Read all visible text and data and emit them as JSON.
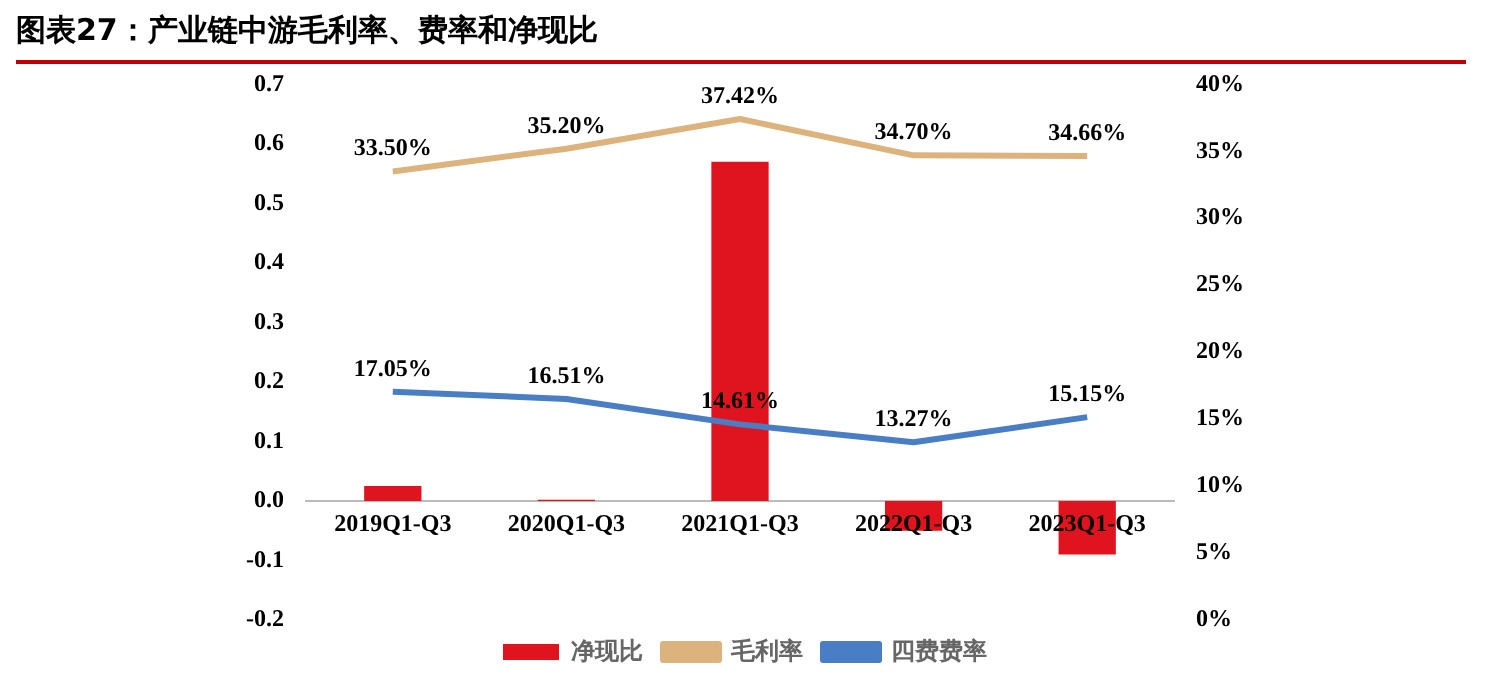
{
  "chart_data": {
    "type": "bar",
    "title": "图表27：产业链中游毛利率、费率和净现比",
    "categories": [
      "2019Q1-Q3",
      "2020Q1-Q3",
      "2021Q1-Q3",
      "2022Q1-Q3",
      "2023Q1-Q3"
    ],
    "series": [
      {
        "name": "净现比",
        "color": "#e0141e",
        "values": [
          0.025,
          0.002,
          0.57,
          -0.05,
          -0.09
        ]
      },
      {
        "name": "毛利率",
        "type": "line",
        "axis": "y2",
        "color": "#dcb37d",
        "values": [
          33.5,
          35.2,
          37.42,
          34.7,
          34.66
        ],
        "value_labels": [
          "33.50%",
          "35.20%",
          "37.42%",
          "34.70%",
          "34.66%"
        ]
      },
      {
        "name": "四费费率",
        "type": "line",
        "axis": "y2",
        "color": "#4a7ec4",
        "values": [
          17.05,
          16.51,
          14.61,
          13.27,
          15.15
        ],
        "value_labels": [
          "17.05%",
          "16.51%",
          "14.61%",
          "13.27%",
          "15.15%"
        ]
      }
    ],
    "ylim": [
      -0.2,
      0.7
    ],
    "yticks": [
      -0.2,
      -0.1,
      {
        "value": 0,
        "label": "0.0"
      },
      0.1,
      0.2,
      0.3,
      0.4,
      0.5,
      0.6,
      0.7
    ],
    "y2lim": [
      0,
      40
    ],
    "y2ticks": [
      {
        "value": 0,
        "label": "0%"
      },
      {
        "value": 5,
        "label": "5%"
      },
      {
        "value": 10,
        "label": "10%"
      },
      {
        "value": 15,
        "label": "15%"
      },
      {
        "value": 20,
        "label": "20%"
      },
      {
        "value": 25,
        "label": "25%"
      },
      {
        "value": 30,
        "label": "30%"
      },
      {
        "value": 35,
        "label": "35%"
      },
      {
        "value": 40,
        "label": "40%"
      }
    ],
    "grid": false,
    "legend": "bottom",
    "marker": "none",
    "line_style": "solid"
  }
}
